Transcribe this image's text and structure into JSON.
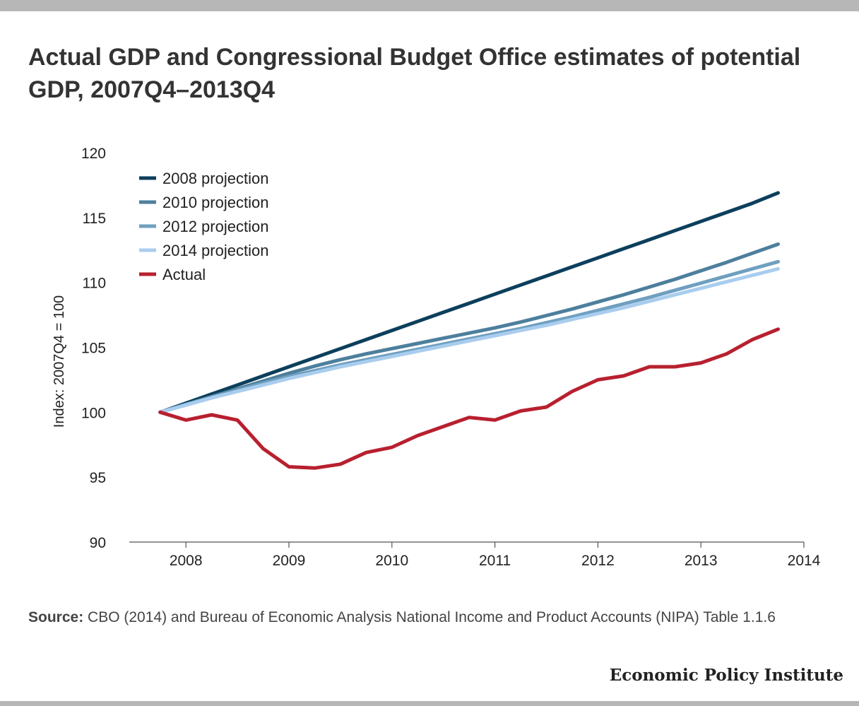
{
  "header": {
    "title": "Actual GDP and Congressional Budget Office estimates of potential GDP, 2007Q4–2013Q4"
  },
  "chart_data": {
    "type": "line",
    "ylabel": "Index: 2007Q4 = 100",
    "xlabel": "",
    "ylim": [
      90,
      120
    ],
    "yticks": [
      90,
      95,
      100,
      105,
      110,
      115,
      120
    ],
    "xlim": [
      2007.45,
      2014.0
    ],
    "xticks": [
      2008,
      2009,
      2010,
      2011,
      2012,
      2013,
      2014
    ],
    "grid": false,
    "legend_position": "top-left",
    "x": [
      2007.75,
      2008.0,
      2008.25,
      2008.5,
      2008.75,
      2009.0,
      2009.25,
      2009.5,
      2009.75,
      2010.0,
      2010.25,
      2010.5,
      2010.75,
      2011.0,
      2011.25,
      2011.5,
      2011.75,
      2012.0,
      2012.25,
      2012.5,
      2012.75,
      2013.0,
      2013.25,
      2013.5,
      2013.75
    ],
    "series": [
      {
        "name": "2008 projection",
        "color": "#0c3f5c",
        "values": [
          100.0,
          100.7,
          101.4,
          102.1,
          102.8,
          103.5,
          104.2,
          104.9,
          105.6,
          106.3,
          107.0,
          107.7,
          108.4,
          109.1,
          109.8,
          110.5,
          111.2,
          111.9,
          112.6,
          113.3,
          114.0,
          114.7,
          115.4,
          116.1,
          116.9
        ]
      },
      {
        "name": "2010 projection",
        "color": "#4d7f9d",
        "values": [
          100.0,
          100.6,
          101.2,
          101.8,
          102.4,
          103.0,
          103.55,
          104.05,
          104.5,
          104.9,
          105.3,
          105.7,
          106.1,
          106.5,
          106.95,
          107.45,
          107.95,
          108.5,
          109.05,
          109.65,
          110.25,
          110.9,
          111.55,
          112.25,
          112.95
        ]
      },
      {
        "name": "2012 projection",
        "color": "#6f9fc0",
        "values": [
          100.0,
          100.6,
          101.15,
          101.7,
          102.25,
          102.75,
          103.2,
          103.65,
          104.05,
          104.45,
          104.85,
          105.25,
          105.65,
          106.05,
          106.45,
          106.9,
          107.35,
          107.85,
          108.35,
          108.85,
          109.4,
          109.95,
          110.5,
          111.05,
          111.6
        ]
      },
      {
        "name": "2014 projection",
        "color": "#a9cdee",
        "values": [
          100.0,
          100.55,
          101.1,
          101.6,
          102.1,
          102.6,
          103.05,
          103.5,
          103.9,
          104.3,
          104.7,
          105.1,
          105.5,
          105.9,
          106.3,
          106.7,
          107.15,
          107.6,
          108.05,
          108.55,
          109.05,
          109.55,
          110.05,
          110.55,
          111.05
        ]
      },
      {
        "name": "Actual",
        "color": "#b8202f",
        "values": [
          100.0,
          99.4,
          99.8,
          99.4,
          97.2,
          95.8,
          95.7,
          96.0,
          96.9,
          97.3,
          98.2,
          98.9,
          99.6,
          99.4,
          100.1,
          100.4,
          101.6,
          102.5,
          102.8,
          103.5,
          103.5,
          103.8,
          104.5,
          105.6,
          106.4
        ]
      }
    ]
  },
  "footer": {
    "source_label": "Source:",
    "source_text": " CBO (2014) and Bureau of Economic Analysis National Income and Product Accounts (NIPA) Table 1.1.6",
    "brand": "Economic Policy Institute"
  }
}
